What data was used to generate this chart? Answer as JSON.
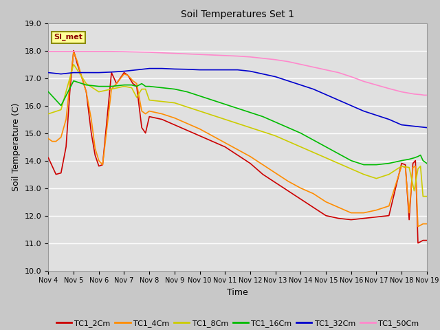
{
  "title": "Soil Temperatures Set 1",
  "xlabel": "Time",
  "ylabel": "Soil Temperature (C)",
  "ylim": [
    10.0,
    19.0
  ],
  "yticks": [
    10.0,
    11.0,
    12.0,
    13.0,
    14.0,
    15.0,
    16.0,
    17.0,
    18.0,
    19.0
  ],
  "x_labels": [
    "Nov 4",
    "Nov 5",
    "Nov 6",
    "Nov 7",
    "Nov 8",
    "Nov 9",
    "Nov 10",
    "Nov 11",
    "Nov 12",
    "Nov 13",
    "Nov 14",
    "Nov 15",
    "Nov 16",
    "Nov 17",
    "Nov 18",
    "Nov 19"
  ],
  "annotation_text": "SI_met",
  "annotation_color": "#8B0000",
  "annotation_bg": "#FFFF99",
  "annotation_border": "#8B8B00",
  "series": {
    "TC1_2Cm": {
      "color": "#CC0000",
      "lw": 1.2
    },
    "TC1_4Cm": {
      "color": "#FF8C00",
      "lw": 1.2
    },
    "TC1_8Cm": {
      "color": "#CCCC00",
      "lw": 1.2
    },
    "TC1_16Cm": {
      "color": "#00BB00",
      "lw": 1.2
    },
    "TC1_32Cm": {
      "color": "#0000CC",
      "lw": 1.2
    },
    "TC1_50Cm": {
      "color": "#FF88CC",
      "lw": 1.2
    }
  },
  "TC1_2Cm_x": [
    0,
    0.15,
    0.3,
    0.5,
    0.7,
    0.85,
    1.0,
    1.15,
    1.3,
    1.5,
    1.7,
    1.85,
    2.0,
    2.15,
    2.5,
    2.7,
    3.0,
    3.15,
    3.35,
    3.5,
    3.7,
    3.85,
    4.0,
    4.5,
    5.0,
    5.5,
    6.0,
    6.5,
    7.0,
    7.5,
    8.0,
    8.5,
    9.0,
    9.5,
    10.0,
    10.5,
    11.0,
    11.5,
    12.0,
    12.5,
    13.0,
    13.5,
    14.0,
    14.15,
    14.3,
    14.45,
    14.55,
    14.65,
    14.75,
    14.85,
    15.0
  ],
  "TC1_2Cm_y": [
    14.1,
    13.8,
    13.5,
    13.55,
    14.5,
    16.5,
    18.0,
    17.5,
    17.1,
    16.5,
    15.0,
    14.2,
    13.8,
    13.85,
    17.2,
    16.8,
    17.2,
    17.1,
    16.8,
    16.7,
    15.2,
    15.0,
    15.6,
    15.5,
    15.3,
    15.1,
    14.9,
    14.7,
    14.5,
    14.2,
    13.9,
    13.5,
    13.2,
    12.9,
    12.6,
    12.3,
    12.0,
    11.9,
    11.85,
    11.9,
    11.95,
    12.0,
    13.9,
    13.85,
    11.85,
    13.9,
    14.0,
    11.0,
    11.05,
    11.1,
    11.1
  ],
  "TC1_4Cm_x": [
    0,
    0.15,
    0.3,
    0.5,
    0.7,
    0.85,
    1.0,
    1.15,
    1.3,
    1.5,
    1.7,
    1.85,
    2.0,
    2.15,
    2.5,
    2.7,
    3.0,
    3.15,
    3.35,
    3.5,
    3.7,
    3.85,
    4.0,
    4.5,
    5.0,
    5.5,
    6.0,
    6.5,
    7.0,
    7.5,
    8.0,
    8.5,
    9.0,
    9.5,
    10.0,
    10.5,
    11.0,
    11.5,
    12.0,
    12.5,
    13.0,
    13.5,
    14.0,
    14.15,
    14.3,
    14.45,
    14.55,
    14.65,
    14.75,
    14.85,
    15.0
  ],
  "TC1_4Cm_y": [
    14.8,
    14.7,
    14.7,
    14.85,
    15.5,
    16.8,
    17.95,
    17.6,
    17.1,
    16.5,
    15.5,
    14.45,
    14.0,
    13.85,
    16.6,
    16.8,
    17.15,
    17.1,
    16.9,
    16.8,
    15.8,
    15.7,
    15.8,
    15.7,
    15.55,
    15.35,
    15.15,
    14.9,
    14.65,
    14.4,
    14.15,
    13.85,
    13.55,
    13.25,
    13.0,
    12.8,
    12.5,
    12.3,
    12.1,
    12.1,
    12.2,
    12.35,
    13.8,
    13.75,
    12.1,
    13.75,
    13.8,
    11.6,
    11.65,
    11.7,
    11.7
  ],
  "TC1_8Cm_x": [
    0,
    0.5,
    1.0,
    1.5,
    2.0,
    2.5,
    3.0,
    3.3,
    3.5,
    3.7,
    3.85,
    4.0,
    4.5,
    5.0,
    5.5,
    6.0,
    6.5,
    7.0,
    7.5,
    8.0,
    8.5,
    9.0,
    9.5,
    10.0,
    10.5,
    11.0,
    11.5,
    12.0,
    12.5,
    13.0,
    13.5,
    14.0,
    14.3,
    14.5,
    14.65,
    14.75,
    14.85,
    15.0
  ],
  "TC1_8Cm_y": [
    15.7,
    15.85,
    17.5,
    16.8,
    16.5,
    16.6,
    16.7,
    16.65,
    16.3,
    16.6,
    16.6,
    16.2,
    16.15,
    16.1,
    15.95,
    15.8,
    15.65,
    15.5,
    15.35,
    15.2,
    15.05,
    14.9,
    14.7,
    14.5,
    14.3,
    14.1,
    13.9,
    13.7,
    13.5,
    13.35,
    13.5,
    13.8,
    13.75,
    12.9,
    13.7,
    13.8,
    12.7,
    12.7
  ],
  "TC1_16Cm_x": [
    0,
    0.5,
    1.0,
    1.5,
    2.0,
    2.5,
    3.0,
    3.3,
    3.5,
    3.7,
    3.85,
    4.0,
    4.5,
    5.0,
    5.5,
    6.0,
    6.5,
    7.0,
    7.5,
    8.0,
    8.5,
    9.0,
    9.5,
    10.0,
    10.5,
    11.0,
    11.5,
    12.0,
    12.5,
    13.0,
    13.5,
    14.0,
    14.3,
    14.5,
    14.65,
    14.75,
    14.85,
    15.0
  ],
  "TC1_16Cm_y": [
    16.5,
    16.0,
    16.9,
    16.75,
    16.7,
    16.7,
    16.75,
    16.75,
    16.7,
    16.8,
    16.7,
    16.7,
    16.65,
    16.6,
    16.5,
    16.35,
    16.2,
    16.05,
    15.9,
    15.75,
    15.6,
    15.4,
    15.2,
    15.0,
    14.75,
    14.5,
    14.25,
    14.0,
    13.85,
    13.85,
    13.9,
    14.0,
    14.05,
    14.1,
    14.15,
    14.2,
    14.0,
    13.9
  ],
  "TC1_32Cm_x": [
    0,
    0.5,
    1.0,
    1.5,
    2.0,
    2.5,
    3.0,
    3.5,
    4.0,
    4.5,
    5.0,
    5.5,
    6.0,
    6.5,
    7.0,
    7.5,
    8.0,
    8.5,
    9.0,
    9.5,
    10.0,
    10.5,
    11.0,
    11.5,
    12.0,
    12.5,
    13.0,
    13.5,
    14.0,
    14.5,
    15.0
  ],
  "TC1_32Cm_y": [
    17.2,
    17.15,
    17.2,
    17.2,
    17.2,
    17.22,
    17.25,
    17.3,
    17.35,
    17.35,
    17.33,
    17.32,
    17.3,
    17.3,
    17.3,
    17.3,
    17.25,
    17.15,
    17.05,
    16.9,
    16.75,
    16.6,
    16.4,
    16.2,
    16.0,
    15.8,
    15.65,
    15.5,
    15.3,
    15.25,
    15.2
  ],
  "TC1_50Cm_x": [
    0,
    0.5,
    1.0,
    1.5,
    2.0,
    2.5,
    3.0,
    3.5,
    4.0,
    4.5,
    5.0,
    5.5,
    6.0,
    6.5,
    7.0,
    7.5,
    8.0,
    8.5,
    9.0,
    9.5,
    10.0,
    10.5,
    11.0,
    11.5,
    12.0,
    12.5,
    13.0,
    13.5,
    14.0,
    14.5,
    14.75,
    14.9,
    15.0
  ],
  "TC1_50Cm_y": [
    17.97,
    17.97,
    17.97,
    17.97,
    17.97,
    17.97,
    17.96,
    17.95,
    17.94,
    17.92,
    17.9,
    17.88,
    17.86,
    17.84,
    17.82,
    17.8,
    17.77,
    17.72,
    17.67,
    17.6,
    17.5,
    17.4,
    17.3,
    17.2,
    17.05,
    16.88,
    16.75,
    16.62,
    16.5,
    16.42,
    16.4,
    16.38,
    16.38
  ]
}
